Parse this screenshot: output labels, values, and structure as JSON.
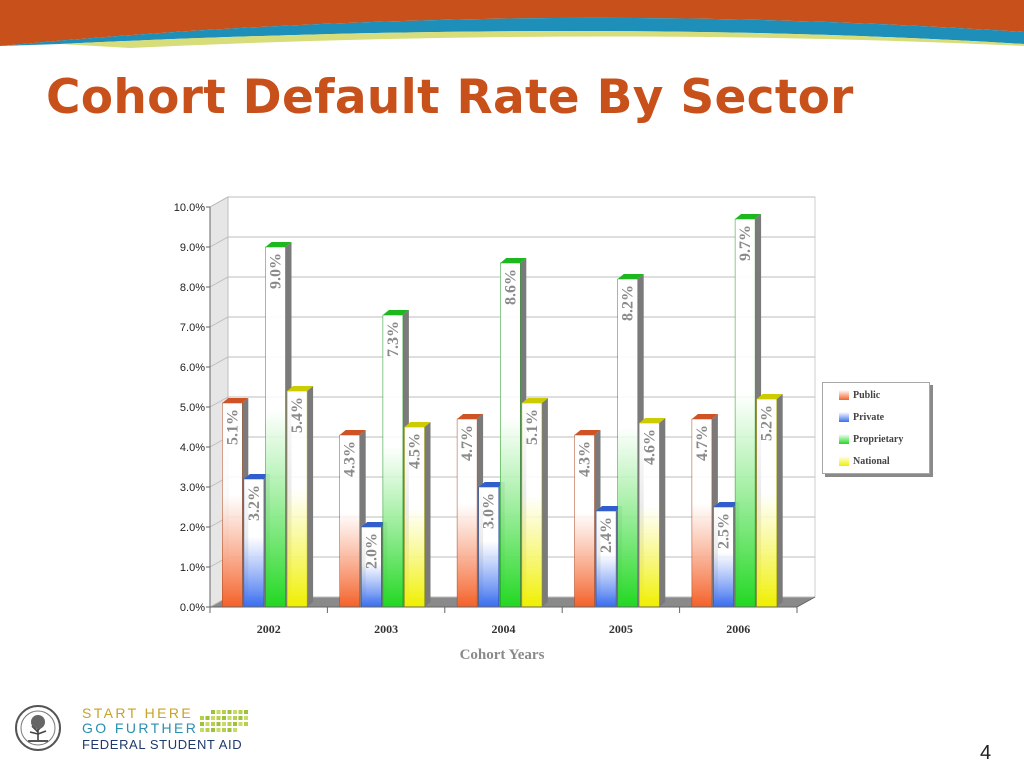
{
  "slide": {
    "title": "Cohort Default Rate By Sector",
    "page_number": "4"
  },
  "footer_logo": {
    "line1": "START HERE",
    "line2": "GO FURTHER",
    "line3": "FEDERAL STUDENT AID",
    "seal_icon": "department-of-education-seal-icon"
  },
  "colors": {
    "banner_orange": "#c8501a",
    "banner_blue": "#1e8fb8",
    "title": "#c8501a",
    "logo_gold": "#c9a227",
    "logo_navy": "#1f3a6e"
  },
  "chart_data": {
    "type": "bar",
    "style": "3d-clustered",
    "title": "",
    "xlabel": "Cohort Years",
    "ylabel": "",
    "categories": [
      "2002",
      "2003",
      "2004",
      "2005",
      "2006"
    ],
    "ylim": [
      0,
      10
    ],
    "y_ticks": [
      "0.0%",
      "1.0%",
      "2.0%",
      "3.0%",
      "4.0%",
      "5.0%",
      "6.0%",
      "7.0%",
      "8.0%",
      "9.0%",
      "10.0%"
    ],
    "grid": true,
    "legend_position": "right",
    "series": [
      {
        "name": "Public",
        "values": [
          5.1,
          4.3,
          4.7,
          4.3,
          4.7
        ],
        "labels": [
          "5.1%",
          "4.3%",
          "4.7%",
          "4.3%",
          "4.7%"
        ],
        "color": "#f4622a"
      },
      {
        "name": "Private",
        "values": [
          3.2,
          2.0,
          3.0,
          2.4,
          2.5
        ],
        "labels": [
          "3.2%",
          "2.0%",
          "3.0%",
          "2.4%",
          "2.5%"
        ],
        "color": "#3a6ef0"
      },
      {
        "name": "Proprietary",
        "values": [
          9.0,
          7.3,
          8.6,
          8.2,
          9.7
        ],
        "labels": [
          "9.0%",
          "7.3%",
          "8.6%",
          "8.2%",
          "9.7%"
        ],
        "color": "#22d822"
      },
      {
        "name": "National",
        "values": [
          5.4,
          4.5,
          5.1,
          4.6,
          5.2
        ],
        "labels": [
          "5.4%",
          "4.5%",
          "5.1%",
          "4.6%",
          "5.2%"
        ],
        "color": "#f0f000"
      }
    ]
  }
}
